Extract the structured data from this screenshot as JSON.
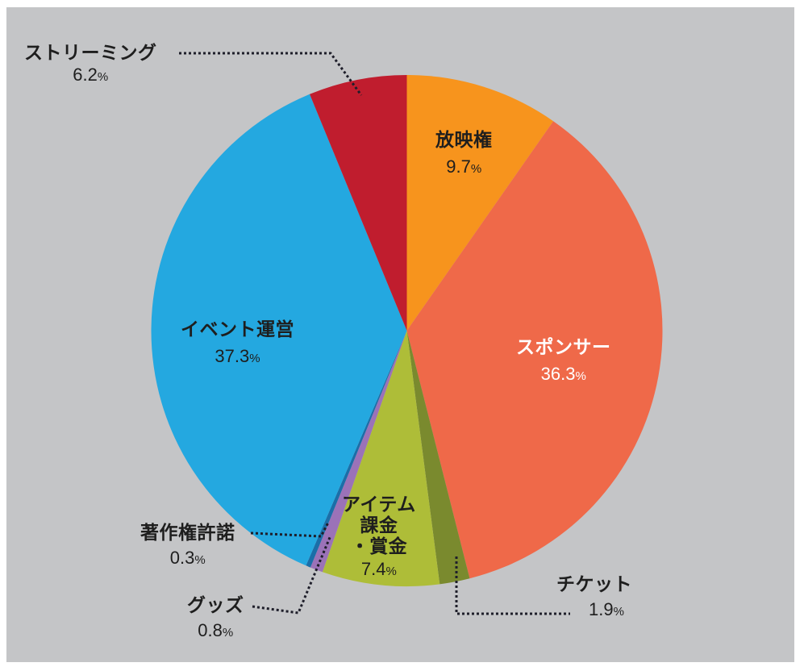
{
  "chart_data": {
    "type": "pie",
    "title": "",
    "start_angle_deg": 0,
    "direction": "clockwise",
    "slices": [
      {
        "label": "放映権",
        "value": 9.7,
        "display": "9.7",
        "color": "#f7941d"
      },
      {
        "label": "スポンサー",
        "value": 36.3,
        "display": "36.3",
        "color": "#ef6949"
      },
      {
        "label": "チケット",
        "value": 1.9,
        "display": "1.9",
        "color": "#7a8a2e"
      },
      {
        "label": "アイテム課金・賞金",
        "value": 7.4,
        "display": "7.4",
        "color": "#aebd38"
      },
      {
        "label": "グッズ",
        "value": 0.8,
        "display": "0.8",
        "color": "#9b72b8"
      },
      {
        "label": "著作権許諾",
        "value": 0.3,
        "display": "0.3",
        "color": "#1b6ea8"
      },
      {
        "label": "イベント運営",
        "value": 37.3,
        "display": "37.3",
        "color": "#24a8e0"
      },
      {
        "label": "ストリーミング",
        "value": 6.2,
        "display": "6.2",
        "color": "#c01d2e"
      }
    ],
    "unit": "%",
    "legend": "none (direct labels with leader lines)",
    "background": "#c4c5c7"
  },
  "labels": {
    "hoeiken": {
      "name": "放映権",
      "pct": "9.7"
    },
    "sponsor": {
      "name": "スポンサー",
      "pct": "36.3"
    },
    "ticket": {
      "name": "チケット",
      "pct": "1.9"
    },
    "item_line1": "アイテム",
    "item_line2": "課金",
    "item_line3": "・賞金",
    "item_pct": "7.4",
    "goods": {
      "name": "グッズ",
      "pct": "0.8"
    },
    "copyright": {
      "name": "著作権許諾",
      "pct": "0.3"
    },
    "event": {
      "name": "イベント運営",
      "pct": "37.3"
    },
    "streaming": {
      "name": "ストリーミング",
      "pct": "6.2"
    },
    "percent_sign": "%"
  }
}
